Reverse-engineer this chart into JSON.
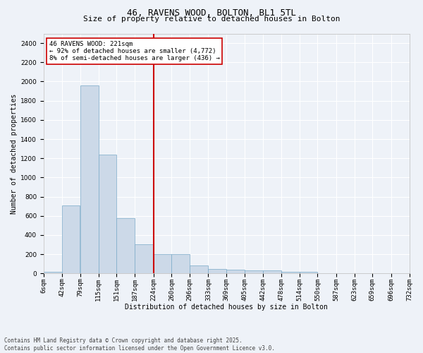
{
  "title": "46, RAVENS WOOD, BOLTON, BL1 5TL",
  "subtitle": "Size of property relative to detached houses in Bolton",
  "xlabel": "Distribution of detached houses by size in Bolton",
  "ylabel": "Number of detached properties",
  "bar_color": "#ccd9e8",
  "bar_edge_color": "#7aaac8",
  "background_color": "#eef2f8",
  "grid_color": "#ffffff",
  "vline_x": 224,
  "vline_color": "#cc0000",
  "annotation_title": "46 RAVENS WOOD: 221sqm",
  "annotation_line1": "← 92% of detached houses are smaller (4,772)",
  "annotation_line2": "8% of semi-detached houses are larger (436) →",
  "annotation_box_color": "#cc0000",
  "bins": [
    6,
    42,
    79,
    115,
    151,
    187,
    224,
    260,
    296,
    333,
    369,
    405,
    442,
    478,
    514,
    550,
    587,
    623,
    659,
    696,
    732
  ],
  "bin_labels": [
    "6sqm",
    "42sqm",
    "79sqm",
    "115sqm",
    "151sqm",
    "187sqm",
    "224sqm",
    "260sqm",
    "296sqm",
    "333sqm",
    "369sqm",
    "405sqm",
    "442sqm",
    "478sqm",
    "514sqm",
    "550sqm",
    "587sqm",
    "623sqm",
    "659sqm",
    "696sqm",
    "732sqm"
  ],
  "values": [
    15,
    710,
    1960,
    1235,
    575,
    305,
    200,
    200,
    85,
    50,
    40,
    35,
    35,
    20,
    20,
    5,
    5,
    5,
    5,
    2
  ],
  "ylim": [
    0,
    2500
  ],
  "yticks": [
    0,
    200,
    400,
    600,
    800,
    1000,
    1200,
    1400,
    1600,
    1800,
    2000,
    2200,
    2400
  ],
  "footer": "Contains HM Land Registry data © Crown copyright and database right 2025.\nContains public sector information licensed under the Open Government Licence v3.0.",
  "title_fontsize": 9,
  "subtitle_fontsize": 8,
  "axis_label_fontsize": 7,
  "tick_fontsize": 6.5,
  "annotation_fontsize": 6.5,
  "footer_fontsize": 5.5
}
